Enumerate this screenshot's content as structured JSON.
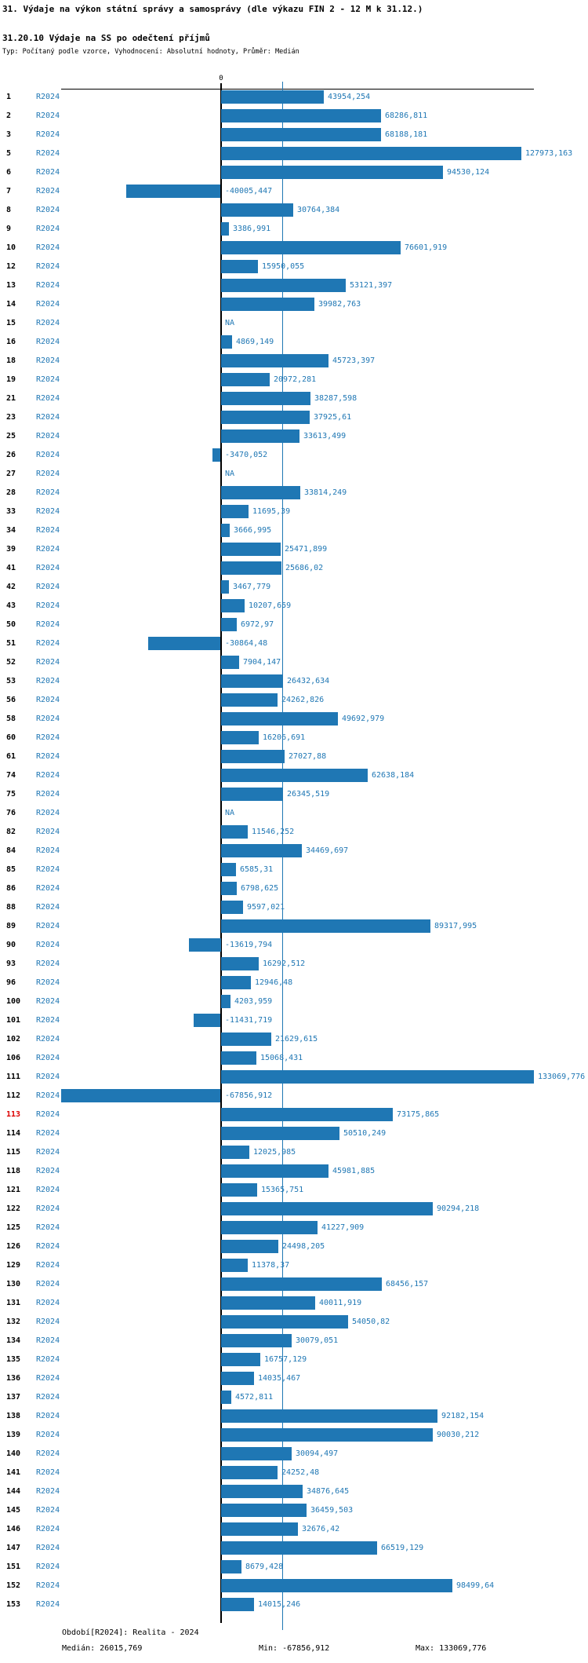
{
  "header": {
    "title": "31. Výdaje na výkon státní správy a samosprávy (dle výkazu FIN 2 - 12 M k 31.12.)",
    "subtitle": "31.20.10 Výdaje na SS po odečtení příjmů",
    "type_line": "Typ: Počítaný podle vzorce, Vyhodnocení: Absolutní hodnoty, Průměr: Medián"
  },
  "colors": {
    "bar": "#1f77b4",
    "text_blue": "#1f77b4",
    "median_line": "#1f77b4",
    "highlight_red": "#dd0000",
    "axis": "#000000"
  },
  "chart_data": {
    "type": "bar",
    "orientation": "horizontal",
    "series_label": "R2024",
    "zero_tick_label": "0",
    "highlighted_row": "113",
    "median": 26015.769,
    "min": -67856.912,
    "max": 133069.776,
    "xlim": [
      -67856.912,
      133069.776
    ],
    "grid": "median-line-only",
    "rows": [
      {
        "id": "1",
        "value": 43954.254,
        "label": "43954,254"
      },
      {
        "id": "2",
        "value": 68286.811,
        "label": "68286,811"
      },
      {
        "id": "3",
        "value": 68188.181,
        "label": "68188,181"
      },
      {
        "id": "5",
        "value": 127973.163,
        "label": "127973,163"
      },
      {
        "id": "6",
        "value": 94530.124,
        "label": "94530,124"
      },
      {
        "id": "7",
        "value": -40005.447,
        "label": "-40005,447"
      },
      {
        "id": "8",
        "value": 30764.384,
        "label": "30764,384"
      },
      {
        "id": "9",
        "value": 3386.991,
        "label": "3386,991"
      },
      {
        "id": "10",
        "value": 76601.919,
        "label": "76601,919"
      },
      {
        "id": "12",
        "value": 15950.055,
        "label": "15950,055"
      },
      {
        "id": "13",
        "value": 53121.397,
        "label": "53121,397"
      },
      {
        "id": "14",
        "value": 39982.763,
        "label": "39982,763"
      },
      {
        "id": "15",
        "value": null,
        "label": "NA"
      },
      {
        "id": "16",
        "value": 4869.149,
        "label": "4869,149"
      },
      {
        "id": "18",
        "value": 45723.397,
        "label": "45723,397"
      },
      {
        "id": "19",
        "value": 20972.281,
        "label": "20972,281"
      },
      {
        "id": "21",
        "value": 38287.598,
        "label": "38287,598"
      },
      {
        "id": "23",
        "value": 37925.61,
        "label": "37925,61"
      },
      {
        "id": "25",
        "value": 33613.499,
        "label": "33613,499"
      },
      {
        "id": "26",
        "value": -3470.052,
        "label": "-3470,052"
      },
      {
        "id": "27",
        "value": null,
        "label": "NA"
      },
      {
        "id": "28",
        "value": 33814.249,
        "label": "33814,249"
      },
      {
        "id": "33",
        "value": 11695.39,
        "label": "11695,39"
      },
      {
        "id": "34",
        "value": 3666.995,
        "label": "3666,995"
      },
      {
        "id": "39",
        "value": 25471.899,
        "label": "25471,899"
      },
      {
        "id": "41",
        "value": 25686.02,
        "label": "25686,02"
      },
      {
        "id": "42",
        "value": 3467.779,
        "label": "3467,779"
      },
      {
        "id": "43",
        "value": 10207.659,
        "label": "10207,659"
      },
      {
        "id": "50",
        "value": 6972.97,
        "label": "6972,97"
      },
      {
        "id": "51",
        "value": -30864.48,
        "label": "-30864,48"
      },
      {
        "id": "52",
        "value": 7904.147,
        "label": "7904,147"
      },
      {
        "id": "53",
        "value": 26432.634,
        "label": "26432,634"
      },
      {
        "id": "56",
        "value": 24262.826,
        "label": "24262,826"
      },
      {
        "id": "58",
        "value": 49692.979,
        "label": "49692,979"
      },
      {
        "id": "60",
        "value": 16206.691,
        "label": "16206,691"
      },
      {
        "id": "61",
        "value": 27027.88,
        "label": "27027,88"
      },
      {
        "id": "74",
        "value": 62638.184,
        "label": "62638,184"
      },
      {
        "id": "75",
        "value": 26345.519,
        "label": "26345,519"
      },
      {
        "id": "76",
        "value": null,
        "label": "NA"
      },
      {
        "id": "82",
        "value": 11546.252,
        "label": "11546,252"
      },
      {
        "id": "84",
        "value": 34469.697,
        "label": "34469,697"
      },
      {
        "id": "85",
        "value": 6585.31,
        "label": "6585,31"
      },
      {
        "id": "86",
        "value": 6798.625,
        "label": "6798,625"
      },
      {
        "id": "88",
        "value": 9597.021,
        "label": "9597,021"
      },
      {
        "id": "89",
        "value": 89317.995,
        "label": "89317,995"
      },
      {
        "id": "90",
        "value": -13619.794,
        "label": "-13619,794"
      },
      {
        "id": "93",
        "value": 16292.512,
        "label": "16292,512"
      },
      {
        "id": "96",
        "value": 12946.48,
        "label": "12946,48"
      },
      {
        "id": "100",
        "value": 4203.959,
        "label": "4203,959"
      },
      {
        "id": "101",
        "value": -11431.719,
        "label": "-11431,719"
      },
      {
        "id": "102",
        "value": 21629.615,
        "label": "21629,615"
      },
      {
        "id": "106",
        "value": 15068.431,
        "label": "15068,431"
      },
      {
        "id": "111",
        "value": 133069.776,
        "label": "133069,776"
      },
      {
        "id": "112",
        "value": -67856.912,
        "label": "-67856,912"
      },
      {
        "id": "113",
        "value": 73175.865,
        "label": "73175,865"
      },
      {
        "id": "114",
        "value": 50510.249,
        "label": "50510,249"
      },
      {
        "id": "115",
        "value": 12025.985,
        "label": "12025,985"
      },
      {
        "id": "118",
        "value": 45981.885,
        "label": "45981,885"
      },
      {
        "id": "121",
        "value": 15365.751,
        "label": "15365,751"
      },
      {
        "id": "122",
        "value": 90294.218,
        "label": "90294,218"
      },
      {
        "id": "125",
        "value": 41227.909,
        "label": "41227,909"
      },
      {
        "id": "126",
        "value": 24498.205,
        "label": "24498,205"
      },
      {
        "id": "129",
        "value": 11378.37,
        "label": "11378,37"
      },
      {
        "id": "130",
        "value": 68456.157,
        "label": "68456,157"
      },
      {
        "id": "131",
        "value": 40011.919,
        "label": "40011,919"
      },
      {
        "id": "132",
        "value": 54050.82,
        "label": "54050,82"
      },
      {
        "id": "134",
        "value": 30079.051,
        "label": "30079,051"
      },
      {
        "id": "135",
        "value": 16757.129,
        "label": "16757,129"
      },
      {
        "id": "136",
        "value": 14035.467,
        "label": "14035,467"
      },
      {
        "id": "137",
        "value": 4572.811,
        "label": "4572,811"
      },
      {
        "id": "138",
        "value": 92182.154,
        "label": "92182,154"
      },
      {
        "id": "139",
        "value": 90030.212,
        "label": "90030,212"
      },
      {
        "id": "140",
        "value": 30094.497,
        "label": "30094,497"
      },
      {
        "id": "141",
        "value": 24252.48,
        "label": "24252,48"
      },
      {
        "id": "144",
        "value": 34876.645,
        "label": "34876,645"
      },
      {
        "id": "145",
        "value": 36459.503,
        "label": "36459,503"
      },
      {
        "id": "146",
        "value": 32676.42,
        "label": "32676,42"
      },
      {
        "id": "147",
        "value": 66519.129,
        "label": "66519,129"
      },
      {
        "id": "151",
        "value": 8679.428,
        "label": "8679,428"
      },
      {
        "id": "152",
        "value": 98499.64,
        "label": "98499,64"
      },
      {
        "id": "153",
        "value": 14015.246,
        "label": "14015,246"
      }
    ]
  },
  "footer": {
    "period_label": "Období[R2024]: Realita - 2024",
    "median_label": "Medián: 26015,769",
    "min_label": "Min: -67856,912",
    "max_label": "Max: 133069,776"
  }
}
